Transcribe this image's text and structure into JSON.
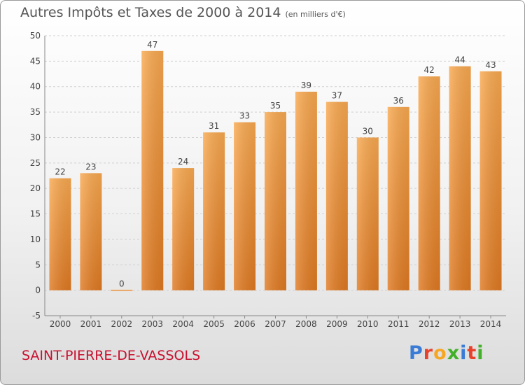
{
  "title": "Autres Impôts et Taxes de 2000 à 2014",
  "unit": "(en milliers d'€)",
  "city": "SAINT-PIERRE-DE-VASSOLS",
  "brand": {
    "text": "Proxiti",
    "colors": [
      "#3a7bd5",
      "#e8412c",
      "#f6a623",
      "#43b02a",
      "#3a7bd5",
      "#e8412c",
      "#43b02a"
    ]
  },
  "colors": {
    "bar_top": "#f9a950",
    "bar_bottom": "#e07a22",
    "grid": "#d0d0d0",
    "axis": "#888888",
    "text": "#444444"
  },
  "chart_data": {
    "type": "bar",
    "categories": [
      "2000",
      "2001",
      "2002",
      "2003",
      "2004",
      "2005",
      "2006",
      "2007",
      "2008",
      "2009",
      "2010",
      "2011",
      "2012",
      "2013",
      "2014"
    ],
    "values": [
      22,
      23,
      0,
      47,
      24,
      31,
      33,
      35,
      39,
      37,
      30,
      36,
      42,
      44,
      43
    ],
    "ylim": [
      -5,
      50
    ],
    "yticks": [
      -5,
      0,
      5,
      10,
      15,
      20,
      25,
      30,
      35,
      40,
      45,
      50
    ],
    "grid": true
  }
}
